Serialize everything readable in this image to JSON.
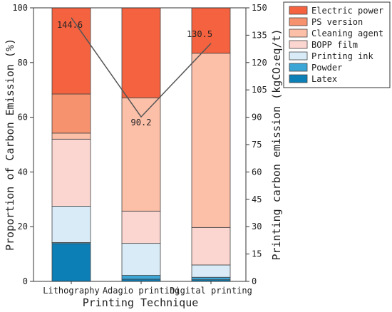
{
  "chart_data": {
    "type": "bar",
    "stacked": true,
    "percent_stacked": true,
    "categories": [
      "Lithography",
      "Adagio printing",
      "Digital printing"
    ],
    "xlabel": "Printing Technique",
    "ylabel": "Proportion of Carbon Emission (%)",
    "ylim": [
      0,
      100
    ],
    "yticks": [
      0,
      20,
      40,
      60,
      80,
      100
    ],
    "y2label": "Printing carbon emission (kgCO₂eq/t)",
    "y2lim": [
      0,
      150
    ],
    "y2ticks": [
      0,
      15,
      30,
      45,
      60,
      75,
      90,
      105,
      120,
      135,
      150
    ],
    "legend_position": "top-right",
    "series": [
      {
        "name": "Latex",
        "color": "#0b7fb6",
        "values": [
          13.8,
          0.8,
          0.6
        ]
      },
      {
        "name": "Powder",
        "color": "#3ba6d6",
        "values": [
          0.4,
          1.4,
          0.9
        ]
      },
      {
        "name": "Printing ink",
        "color": "#d8ebf6",
        "values": [
          13.3,
          11.7,
          4.5
        ]
      },
      {
        "name": "BOPP film",
        "color": "#fbd6d0",
        "values": [
          24.5,
          11.8,
          13.7
        ]
      },
      {
        "name": "Cleaning agent",
        "color": "#fcbfa8",
        "values": [
          2.2,
          41.4,
          63.7
        ]
      },
      {
        "name": "PS version",
        "color": "#f7926e",
        "values": [
          14.3,
          0,
          0
        ]
      },
      {
        "name": "Electric power",
        "color": "#f4623f",
        "values": [
          31.5,
          32.9,
          16.6
        ]
      }
    ],
    "line": {
      "axis": "right",
      "color": "#555555",
      "values": [
        144.6,
        90.2,
        130.5
      ],
      "labels": [
        "144.6",
        "90.2",
        "130.5"
      ]
    }
  }
}
